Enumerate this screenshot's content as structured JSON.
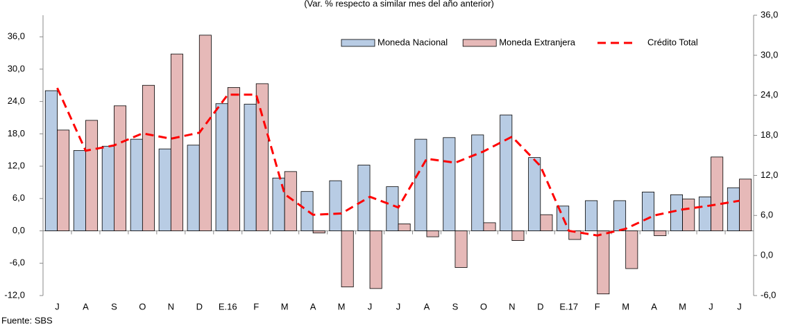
{
  "chart_data": {
    "type": "bar_line",
    "subtitle": "(Var. % respecto a similar mes del año anterior)",
    "source": "Fuente: SBS",
    "categories": [
      "J",
      "A",
      "S",
      "O",
      "N",
      "D",
      "E.16",
      "F",
      "M",
      "A",
      "M",
      "J",
      "J",
      "A",
      "S",
      "O",
      "N",
      "D",
      "E.17",
      "F",
      "M",
      "A",
      "M",
      "J",
      "J"
    ],
    "series": [
      {
        "name": "Moneda Nacional",
        "type": "bar",
        "color": "#b8cce4",
        "values": [
          26.0,
          14.9,
          15.7,
          17.0,
          15.2,
          15.9,
          23.6,
          23.5,
          9.8,
          7.3,
          9.3,
          12.2,
          8.2,
          17.0,
          17.3,
          17.8,
          21.5,
          13.6,
          4.6,
          5.6,
          5.6,
          7.2,
          6.7,
          6.3,
          8.0
        ]
      },
      {
        "name": "Moneda Extranjera",
        "type": "bar",
        "color": "#e6b9b8",
        "values": [
          18.7,
          20.5,
          23.2,
          27.0,
          32.8,
          36.3,
          26.6,
          27.3,
          11.0,
          -0.4,
          -10.4,
          -10.7,
          1.3,
          -1.1,
          -6.8,
          1.5,
          -1.8,
          3.0,
          -1.6,
          -11.7,
          -7.0,
          -0.9,
          5.9,
          13.7,
          9.6
        ]
      },
      {
        "name": "Crédito Total",
        "type": "line",
        "axis": "y2",
        "color": "#ff0000",
        "values": [
          25.1,
          15.7,
          16.5,
          18.3,
          17.5,
          18.4,
          24.1,
          24.1,
          9.2,
          6.1,
          6.3,
          8.8,
          7.2,
          14.5,
          13.9,
          15.6,
          17.8,
          13.4,
          3.7,
          3.0,
          4.0,
          6.0,
          6.9,
          7.5,
          8.2
        ]
      }
    ],
    "ylim": [
      -12,
      40
    ],
    "yticks": [
      {
        "value": -12,
        "label": "-12,0"
      },
      {
        "value": -6,
        "label": "-6,0"
      },
      {
        "value": 0,
        "label": "0,0"
      },
      {
        "value": 6,
        "label": "6,0"
      },
      {
        "value": 12,
        "label": "12,0"
      },
      {
        "value": 18,
        "label": "18,0"
      },
      {
        "value": 24,
        "label": "24,0"
      },
      {
        "value": 30,
        "label": "30,0"
      },
      {
        "value": 36,
        "label": "36,0"
      }
    ],
    "y2lim": [
      -6,
      36
    ],
    "y2ticks": [
      {
        "value": -6,
        "label": "-6,0"
      },
      {
        "value": 0,
        "label": "0,0"
      },
      {
        "value": 6,
        "label": "6,0"
      },
      {
        "value": 12,
        "label": "12,0"
      },
      {
        "value": 18,
        "label": "18,0"
      },
      {
        "value": 24,
        "label": "24,0"
      },
      {
        "value": 30,
        "label": "30,0"
      },
      {
        "value": 36,
        "label": "36,0"
      }
    ],
    "legend": "top-right"
  }
}
